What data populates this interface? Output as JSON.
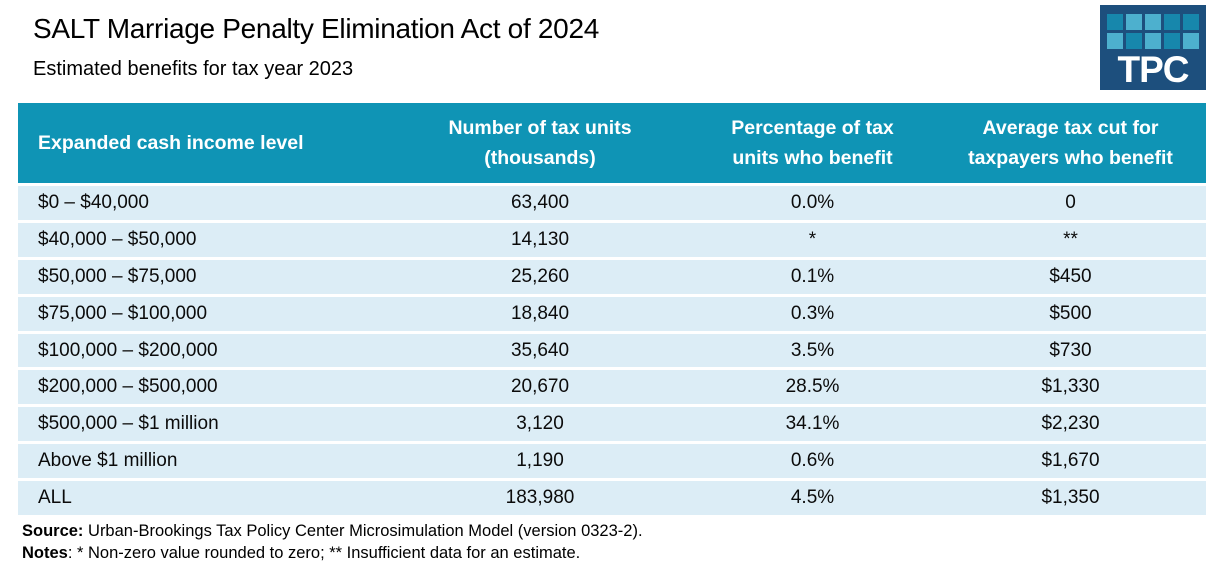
{
  "header": {
    "title": "SALT Marriage Penalty Elimination Act of 2024",
    "subtitle": "Estimated benefits for tax year 2023"
  },
  "logo": {
    "text": "TPC",
    "bg_color": "#1d4f7d",
    "square_dark": "#1787ac",
    "square_light": "#4db0ce",
    "pattern": [
      [
        "dark",
        "light",
        "light",
        "dark",
        "dark"
      ],
      [
        "light",
        "dark",
        "light",
        "dark",
        "light"
      ]
    ]
  },
  "colors": {
    "header_teal": "#0f94b5",
    "row_bg": "#dcedf6",
    "logo_navy": "#1d4f7d"
  },
  "chart_data": {
    "type": "table",
    "title": "SALT Marriage Penalty Elimination Act of 2024",
    "subtitle": "Estimated benefits for tax year 2023",
    "columns": [
      "Expanded cash income level",
      "Number of tax units (thousands)",
      "Percentage of tax units who benefit",
      "Average tax cut for taxpayers who benefit"
    ],
    "rows": [
      [
        "$0 – $40,000",
        "63,400",
        "0.0%",
        "0"
      ],
      [
        "$40,000 – $50,000",
        "14,130",
        "*",
        "**"
      ],
      [
        "$50,000 – $75,000",
        "25,260",
        "0.1%",
        "$450"
      ],
      [
        "$75,000 – $100,000",
        "18,840",
        "0.3%",
        "$500"
      ],
      [
        "$100,000 – $200,000",
        "35,640",
        "3.5%",
        "$730"
      ],
      [
        "$200,000 – $500,000",
        "20,670",
        "28.5%",
        "$1,330"
      ],
      [
        "$500,000 – $1 million",
        "3,120",
        "34.1%",
        "$2,230"
      ],
      [
        "Above $1 million",
        "1,190",
        "0.6%",
        "$1,670"
      ],
      [
        "ALL",
        "183,980",
        "4.5%",
        "$1,350"
      ]
    ]
  },
  "footer": {
    "source_label": "Source:",
    "source_text": " Urban-Brookings Tax Policy Center Microsimulation Model (version 0323-2).",
    "notes_label": "Notes",
    "notes_text": ": * Non-zero value rounded to zero; ** Insufficient data for an estimate."
  }
}
